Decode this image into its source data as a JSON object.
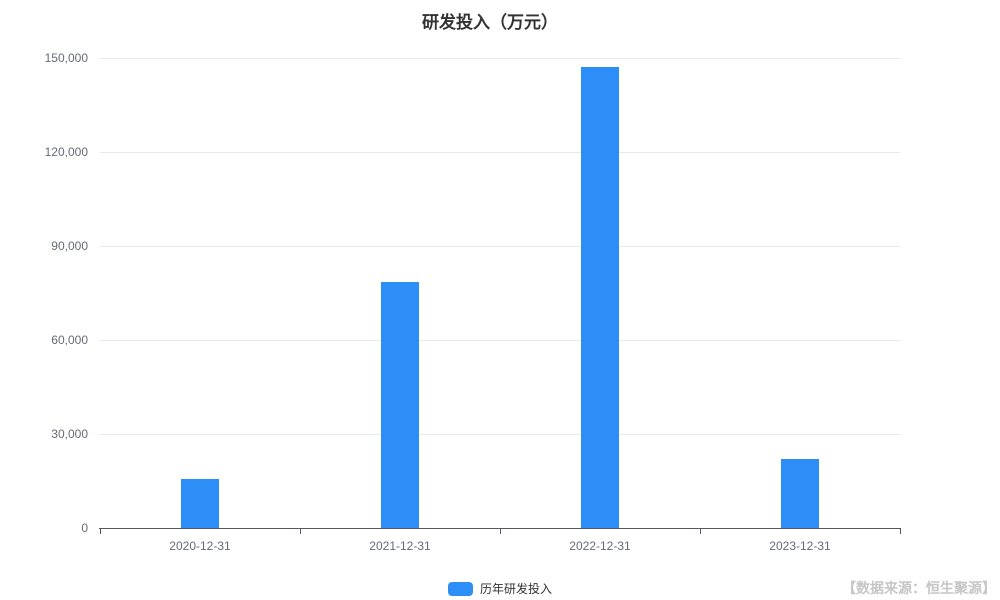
{
  "title": "研发投入（万元）",
  "source_label": "【数据来源：恒生聚源】",
  "legend": {
    "label": "历年研发投入",
    "marker_color": "#2E8EF7"
  },
  "colors": {
    "bar": "#2E8EF7",
    "gridline": "#e4eaf4",
    "axis": "#55585f",
    "tick_label": "#666b74",
    "title": "#333333",
    "source": "#c6c6c6"
  },
  "chart_data": {
    "type": "bar",
    "title": "研发投入（万元）",
    "categories": [
      "2020-12-31",
      "2021-12-31",
      "2022-12-31",
      "2023-12-31"
    ],
    "series": [
      {
        "name": "历年研发投入",
        "values": [
          15600,
          78500,
          147000,
          22000
        ]
      }
    ],
    "xlabel": "",
    "ylabel": "",
    "ylim": [
      0,
      150000
    ],
    "yticks": [
      0,
      30000,
      60000,
      90000,
      120000,
      150000
    ],
    "grid": true,
    "legend_position": "bottom",
    "bar_color": "#2E8EF7"
  }
}
